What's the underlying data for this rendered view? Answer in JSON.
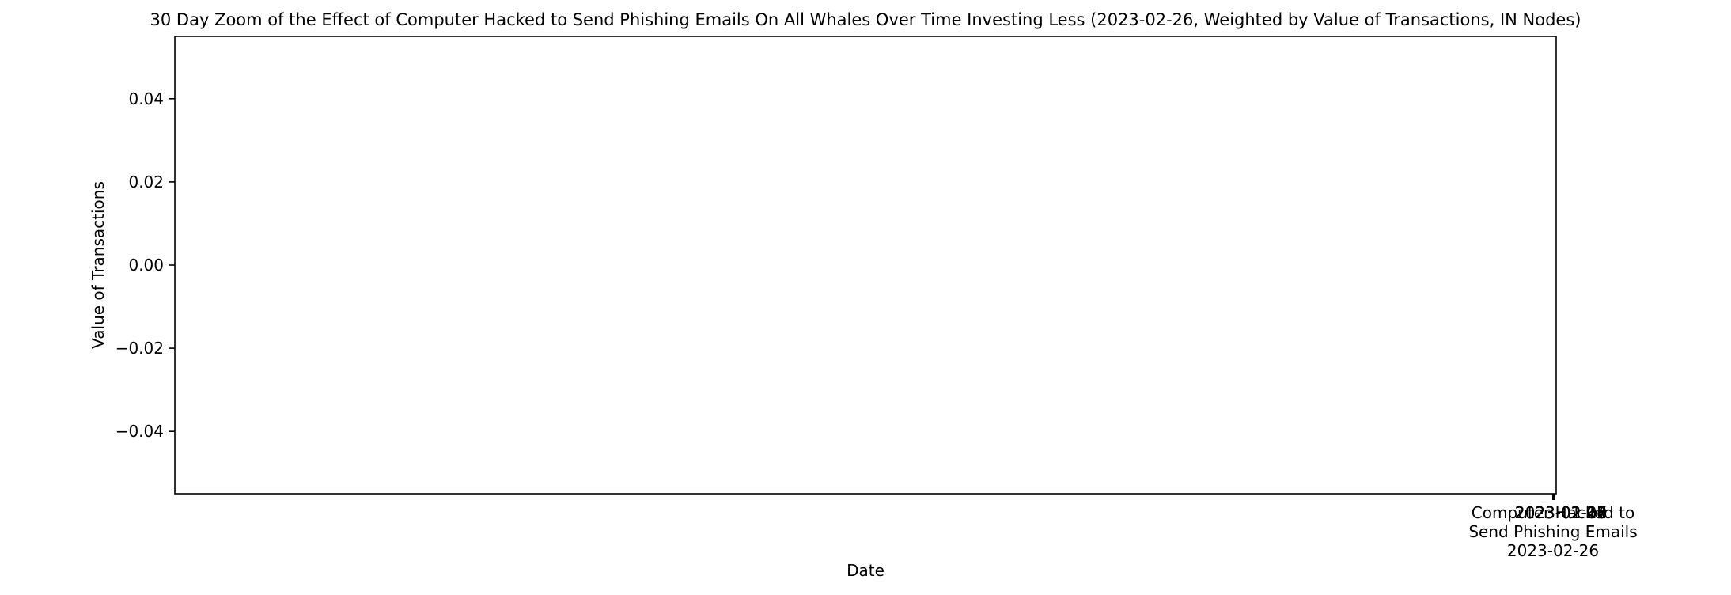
{
  "chart_data": {
    "type": "line",
    "title": "30 Day Zoom of the Effect of Computer Hacked to Send Phishing Emails On All Whales Over Time Investing Less (2023-02-26, Weighted by Value of Transactions, IN Nodes)",
    "xlabel": "Date",
    "ylabel": "Value of Transactions",
    "yticks": [
      "0.04",
      "0.02",
      "0.00",
      "−0.02",
      "−0.04"
    ],
    "ytick_values": [
      0.04,
      0.02,
      0.0,
      -0.02,
      -0.04
    ],
    "ylim": [
      -0.055,
      0.055
    ],
    "xticks_overlapping": [
      "2023-01-27",
      "2023-02-02",
      "2023-02-08",
      "2023-02-14",
      "2023-02-20",
      "2023-02-26"
    ],
    "event_label_lines": [
      "Computer Hacked to",
      "Send Phishing Emails",
      "2023-02-26"
    ],
    "series": [],
    "grid": false,
    "legend": "none"
  }
}
